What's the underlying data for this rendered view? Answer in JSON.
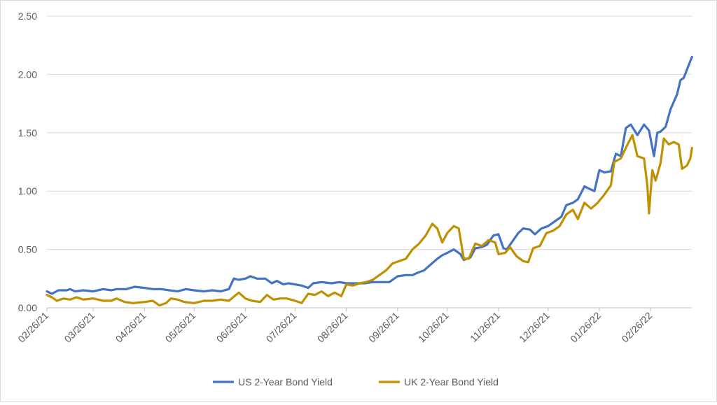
{
  "chart_data": {
    "type": "line",
    "title": "",
    "xlabel": "",
    "ylabel": "",
    "ylim": [
      0,
      2.5
    ],
    "y_ticks": [
      "0.00",
      "0.50",
      "1.00",
      "1.50",
      "2.00",
      "2.50"
    ],
    "x_ticks": [
      "02/26/21",
      "03/26/21",
      "04/26/21",
      "05/26/21",
      "06/26/21",
      "07/26/21",
      "08/26/21",
      "09/26/21",
      "10/26/21",
      "11/26/21",
      "12/26/21",
      "01/26/22",
      "02/26/22"
    ],
    "grid": "horizontal",
    "legend_position": "bottom",
    "series": [
      {
        "name": "US 2-Year Bond Yield",
        "color": "#4472C4",
        "points": [
          [
            "2021-02-26",
            0.14
          ],
          [
            "2021-03-01",
            0.12
          ],
          [
            "2021-03-05",
            0.15
          ],
          [
            "2021-03-10",
            0.15
          ],
          [
            "2021-03-12",
            0.16
          ],
          [
            "2021-03-15",
            0.14
          ],
          [
            "2021-03-20",
            0.15
          ],
          [
            "2021-03-26",
            0.14
          ],
          [
            "2021-04-01",
            0.16
          ],
          [
            "2021-04-06",
            0.15
          ],
          [
            "2021-04-09",
            0.16
          ],
          [
            "2021-04-15",
            0.16
          ],
          [
            "2021-04-20",
            0.18
          ],
          [
            "2021-04-26",
            0.17
          ],
          [
            "2021-05-01",
            0.16
          ],
          [
            "2021-05-06",
            0.16
          ],
          [
            "2021-05-11",
            0.15
          ],
          [
            "2021-05-16",
            0.14
          ],
          [
            "2021-05-21",
            0.16
          ],
          [
            "2021-05-26",
            0.15
          ],
          [
            "2021-06-01",
            0.14
          ],
          [
            "2021-06-06",
            0.15
          ],
          [
            "2021-06-11",
            0.14
          ],
          [
            "2021-06-16",
            0.16
          ],
          [
            "2021-06-19",
            0.25
          ],
          [
            "2021-06-22",
            0.24
          ],
          [
            "2021-06-26",
            0.25
          ],
          [
            "2021-06-29",
            0.27
          ],
          [
            "2021-07-03",
            0.25
          ],
          [
            "2021-07-08",
            0.25
          ],
          [
            "2021-07-12",
            0.21
          ],
          [
            "2021-07-15",
            0.23
          ],
          [
            "2021-07-19",
            0.2
          ],
          [
            "2021-07-22",
            0.21
          ],
          [
            "2021-07-26",
            0.2
          ],
          [
            "2021-07-30",
            0.19
          ],
          [
            "2021-08-03",
            0.17
          ],
          [
            "2021-08-06",
            0.21
          ],
          [
            "2021-08-11",
            0.22
          ],
          [
            "2021-08-17",
            0.21
          ],
          [
            "2021-08-22",
            0.22
          ],
          [
            "2021-08-26",
            0.21
          ],
          [
            "2021-09-01",
            0.21
          ],
          [
            "2021-09-06",
            0.21
          ],
          [
            "2021-09-11",
            0.22
          ],
          [
            "2021-09-16",
            0.22
          ],
          [
            "2021-09-21",
            0.22
          ],
          [
            "2021-09-26",
            0.27
          ],
          [
            "2021-10-01",
            0.28
          ],
          [
            "2021-10-05",
            0.28
          ],
          [
            "2021-10-08",
            0.3
          ],
          [
            "2021-10-12",
            0.32
          ],
          [
            "2021-10-16",
            0.37
          ],
          [
            "2021-10-20",
            0.42
          ],
          [
            "2021-10-23",
            0.45
          ],
          [
            "2021-10-26",
            0.47
          ],
          [
            "2021-10-30",
            0.5
          ],
          [
            "2021-11-03",
            0.46
          ],
          [
            "2021-11-05",
            0.41
          ],
          [
            "2021-11-09",
            0.43
          ],
          [
            "2021-11-12",
            0.51
          ],
          [
            "2021-11-16",
            0.52
          ],
          [
            "2021-11-19",
            0.54
          ],
          [
            "2021-11-23",
            0.62
          ],
          [
            "2021-11-26",
            0.63
          ],
          [
            "2021-11-29",
            0.51
          ],
          [
            "2021-12-01",
            0.5
          ],
          [
            "2021-12-04",
            0.56
          ],
          [
            "2021-12-08",
            0.64
          ],
          [
            "2021-12-11",
            0.68
          ],
          [
            "2021-12-15",
            0.67
          ],
          [
            "2021-12-18",
            0.63
          ],
          [
            "2021-12-22",
            0.68
          ],
          [
            "2021-12-26",
            0.7
          ],
          [
            "2021-12-30",
            0.74
          ],
          [
            "2022-01-03",
            0.78
          ],
          [
            "2022-01-06",
            0.88
          ],
          [
            "2022-01-10",
            0.9
          ],
          [
            "2022-01-13",
            0.93
          ],
          [
            "2022-01-17",
            1.04
          ],
          [
            "2022-01-20",
            1.02
          ],
          [
            "2022-01-23",
            1.0
          ],
          [
            "2022-01-26",
            1.18
          ],
          [
            "2022-01-29",
            1.16
          ],
          [
            "2022-02-02",
            1.17
          ],
          [
            "2022-02-05",
            1.32
          ],
          [
            "2022-02-08",
            1.3
          ],
          [
            "2022-02-11",
            1.54
          ],
          [
            "2022-02-14",
            1.57
          ],
          [
            "2022-02-18",
            1.48
          ],
          [
            "2022-02-22",
            1.57
          ],
          [
            "2022-02-25",
            1.52
          ],
          [
            "2022-02-28",
            1.3
          ],
          [
            "2022-03-02",
            1.5
          ],
          [
            "2022-03-04",
            1.51
          ],
          [
            "2022-03-07",
            1.55
          ],
          [
            "2022-03-10",
            1.7
          ],
          [
            "2022-03-14",
            1.83
          ],
          [
            "2022-03-16",
            1.95
          ],
          [
            "2022-03-18",
            1.97
          ],
          [
            "2022-03-21",
            2.08
          ],
          [
            "2022-03-23",
            2.15
          ]
        ]
      },
      {
        "name": "UK 2-Year Bond Yield",
        "color": "#BF9000",
        "points": [
          [
            "2021-02-26",
            0.11
          ],
          [
            "2021-03-01",
            0.09
          ],
          [
            "2021-03-04",
            0.06
          ],
          [
            "2021-03-08",
            0.08
          ],
          [
            "2021-03-12",
            0.07
          ],
          [
            "2021-03-16",
            0.09
          ],
          [
            "2021-03-20",
            0.07
          ],
          [
            "2021-03-26",
            0.08
          ],
          [
            "2021-04-01",
            0.06
          ],
          [
            "2021-04-06",
            0.06
          ],
          [
            "2021-04-09",
            0.08
          ],
          [
            "2021-04-14",
            0.05
          ],
          [
            "2021-04-19",
            0.04
          ],
          [
            "2021-04-26",
            0.05
          ],
          [
            "2021-05-01",
            0.06
          ],
          [
            "2021-05-05",
            0.02
          ],
          [
            "2021-05-09",
            0.04
          ],
          [
            "2021-05-12",
            0.08
          ],
          [
            "2021-05-16",
            0.07
          ],
          [
            "2021-05-20",
            0.05
          ],
          [
            "2021-05-26",
            0.04
          ],
          [
            "2021-06-01",
            0.06
          ],
          [
            "2021-06-06",
            0.06
          ],
          [
            "2021-06-11",
            0.07
          ],
          [
            "2021-06-16",
            0.06
          ],
          [
            "2021-06-22",
            0.13
          ],
          [
            "2021-06-26",
            0.08
          ],
          [
            "2021-06-30",
            0.06
          ],
          [
            "2021-07-05",
            0.05
          ],
          [
            "2021-07-09",
            0.11
          ],
          [
            "2021-07-13",
            0.07
          ],
          [
            "2021-07-17",
            0.08
          ],
          [
            "2021-07-21",
            0.08
          ],
          [
            "2021-07-26",
            0.06
          ],
          [
            "2021-07-30",
            0.04
          ],
          [
            "2021-08-03",
            0.12
          ],
          [
            "2021-08-07",
            0.11
          ],
          [
            "2021-08-11",
            0.14
          ],
          [
            "2021-08-15",
            0.1
          ],
          [
            "2021-08-19",
            0.13
          ],
          [
            "2021-08-23",
            0.1
          ],
          [
            "2021-08-26",
            0.2
          ],
          [
            "2021-08-30",
            0.19
          ],
          [
            "2021-09-03",
            0.21
          ],
          [
            "2021-09-07",
            0.22
          ],
          [
            "2021-09-11",
            0.24
          ],
          [
            "2021-09-15",
            0.28
          ],
          [
            "2021-09-19",
            0.32
          ],
          [
            "2021-09-23",
            0.38
          ],
          [
            "2021-09-27",
            0.4
          ],
          [
            "2021-10-01",
            0.42
          ],
          [
            "2021-10-05",
            0.5
          ],
          [
            "2021-10-09",
            0.55
          ],
          [
            "2021-10-13",
            0.62
          ],
          [
            "2021-10-17",
            0.72
          ],
          [
            "2021-10-20",
            0.68
          ],
          [
            "2021-10-23",
            0.56
          ],
          [
            "2021-10-26",
            0.64
          ],
          [
            "2021-10-30",
            0.7
          ],
          [
            "2021-11-02",
            0.68
          ],
          [
            "2021-11-05",
            0.42
          ],
          [
            "2021-11-08",
            0.42
          ],
          [
            "2021-11-12",
            0.55
          ],
          [
            "2021-11-16",
            0.53
          ],
          [
            "2021-11-20",
            0.58
          ],
          [
            "2021-11-24",
            0.56
          ],
          [
            "2021-11-26",
            0.46
          ],
          [
            "2021-11-30",
            0.47
          ],
          [
            "2021-12-03",
            0.52
          ],
          [
            "2021-12-07",
            0.44
          ],
          [
            "2021-12-11",
            0.4
          ],
          [
            "2021-12-14",
            0.39
          ],
          [
            "2021-12-17",
            0.51
          ],
          [
            "2021-12-21",
            0.53
          ],
          [
            "2021-12-25",
            0.64
          ],
          [
            "2021-12-29",
            0.66
          ],
          [
            "2022-01-02",
            0.7
          ],
          [
            "2022-01-06",
            0.8
          ],
          [
            "2022-01-10",
            0.84
          ],
          [
            "2022-01-13",
            0.76
          ],
          [
            "2022-01-17",
            0.9
          ],
          [
            "2022-01-21",
            0.85
          ],
          [
            "2022-01-25",
            0.9
          ],
          [
            "2022-01-29",
            0.97
          ],
          [
            "2022-02-02",
            1.05
          ],
          [
            "2022-02-04",
            1.25
          ],
          [
            "2022-02-08",
            1.28
          ],
          [
            "2022-02-12",
            1.4
          ],
          [
            "2022-02-15",
            1.48
          ],
          [
            "2022-02-18",
            1.3
          ],
          [
            "2022-02-22",
            1.28
          ],
          [
            "2022-02-24",
            1.05
          ],
          [
            "2022-02-25",
            0.81
          ],
          [
            "2022-02-27",
            1.18
          ],
          [
            "2022-03-01",
            1.09
          ],
          [
            "2022-03-04",
            1.24
          ],
          [
            "2022-03-06",
            1.45
          ],
          [
            "2022-03-09",
            1.4
          ],
          [
            "2022-03-12",
            1.42
          ],
          [
            "2022-03-15",
            1.4
          ],
          [
            "2022-03-17",
            1.19
          ],
          [
            "2022-03-20",
            1.22
          ],
          [
            "2022-03-22",
            1.28
          ],
          [
            "2022-03-23",
            1.37
          ]
        ]
      }
    ]
  }
}
